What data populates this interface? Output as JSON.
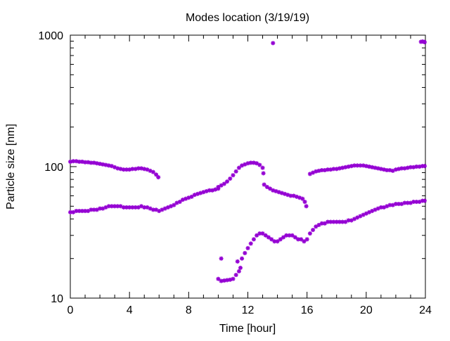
{
  "chart_data": {
    "type": "scatter",
    "title": "Modes location (3/19/19)",
    "xlabel": "Time [hour]",
    "ylabel": "Particle size [nm]",
    "xlim": [
      0,
      24
    ],
    "ylim": [
      10,
      1000
    ],
    "yscale": "log",
    "xticks": [
      0,
      4,
      8,
      12,
      16,
      20,
      24
    ],
    "xtick_labels": [
      "0",
      "4",
      "8",
      "12",
      "16",
      "20",
      "24"
    ],
    "yticks": [
      10,
      100,
      1000
    ],
    "ytick_labels": [
      "10",
      "100",
      "1000"
    ],
    "grid": false,
    "legend": "none",
    "marker_color": "#9400d3",
    "series": [
      {
        "points": [
          [
            0.0,
            109
          ],
          [
            0.2,
            110
          ],
          [
            0.4,
            110
          ],
          [
            0.6,
            109
          ],
          [
            0.8,
            109
          ],
          [
            1.0,
            108
          ],
          [
            1.2,
            108
          ],
          [
            1.4,
            107
          ],
          [
            1.6,
            107
          ],
          [
            1.8,
            106
          ],
          [
            2.0,
            105
          ],
          [
            2.2,
            104
          ],
          [
            2.4,
            103
          ],
          [
            2.6,
            102
          ],
          [
            2.8,
            101
          ],
          [
            3.0,
            99
          ],
          [
            3.2,
            97
          ],
          [
            3.4,
            96
          ],
          [
            3.6,
            95
          ],
          [
            3.8,
            95
          ],
          [
            4.0,
            95
          ],
          [
            4.2,
            96
          ],
          [
            4.4,
            96
          ],
          [
            4.6,
            97
          ],
          [
            4.8,
            97
          ],
          [
            5.0,
            96
          ],
          [
            5.2,
            95
          ],
          [
            5.4,
            93
          ],
          [
            5.6,
            91
          ],
          [
            5.8,
            87
          ],
          [
            5.95,
            83
          ],
          [
            10.0,
            70
          ],
          [
            10.2,
            72
          ],
          [
            10.4,
            74
          ],
          [
            10.6,
            77
          ],
          [
            10.8,
            81
          ],
          [
            11.0,
            86
          ],
          [
            11.2,
            92
          ],
          [
            11.4,
            98
          ],
          [
            11.6,
            102
          ],
          [
            11.8,
            104
          ],
          [
            12.0,
            106
          ],
          [
            12.2,
            107
          ],
          [
            12.4,
            107
          ],
          [
            12.6,
            106
          ],
          [
            12.8,
            103
          ],
          [
            13.0,
            98
          ],
          [
            13.05,
            89
          ],
          [
            16.2,
            88
          ],
          [
            16.4,
            90
          ],
          [
            16.6,
            92
          ],
          [
            16.8,
            93
          ],
          [
            17.0,
            94
          ],
          [
            17.2,
            94
          ],
          [
            17.4,
            95
          ],
          [
            17.6,
            95
          ],
          [
            17.8,
            96
          ],
          [
            18.0,
            96
          ],
          [
            18.2,
            97
          ],
          [
            18.4,
            98
          ],
          [
            18.6,
            99
          ],
          [
            18.8,
            100
          ],
          [
            19.0,
            101
          ],
          [
            19.2,
            102
          ],
          [
            19.4,
            102
          ],
          [
            19.6,
            102
          ],
          [
            19.8,
            102
          ],
          [
            20.0,
            101
          ],
          [
            20.2,
            100
          ],
          [
            20.4,
            99
          ],
          [
            20.6,
            98
          ],
          [
            20.8,
            97
          ],
          [
            21.0,
            96
          ],
          [
            21.2,
            95
          ],
          [
            21.4,
            94
          ],
          [
            21.6,
            94
          ],
          [
            21.8,
            93
          ],
          [
            22.0,
            95
          ],
          [
            22.2,
            96
          ],
          [
            22.4,
            97
          ],
          [
            22.6,
            97
          ],
          [
            22.8,
            98
          ],
          [
            23.0,
            99
          ],
          [
            23.2,
            99
          ],
          [
            23.4,
            100
          ],
          [
            23.6,
            100
          ],
          [
            23.8,
            101
          ],
          [
            23.95,
            101
          ]
        ]
      },
      {
        "points": [
          [
            0.0,
            45
          ],
          [
            0.2,
            45
          ],
          [
            0.4,
            46
          ],
          [
            0.6,
            46
          ],
          [
            0.8,
            46
          ],
          [
            1.0,
            46
          ],
          [
            1.2,
            46
          ],
          [
            1.4,
            47
          ],
          [
            1.6,
            47
          ],
          [
            1.8,
            47
          ],
          [
            2.0,
            48
          ],
          [
            2.2,
            48
          ],
          [
            2.4,
            49
          ],
          [
            2.6,
            50
          ],
          [
            2.8,
            50
          ],
          [
            3.0,
            50
          ],
          [
            3.2,
            50
          ],
          [
            3.4,
            50
          ],
          [
            3.6,
            49
          ],
          [
            3.8,
            49
          ],
          [
            4.0,
            49
          ],
          [
            4.2,
            49
          ],
          [
            4.4,
            49
          ],
          [
            4.6,
            49
          ],
          [
            4.8,
            50
          ],
          [
            5.0,
            49
          ],
          [
            5.2,
            49
          ],
          [
            5.4,
            48
          ],
          [
            5.6,
            47
          ],
          [
            5.8,
            47
          ],
          [
            6.0,
            46
          ],
          [
            6.2,
            47
          ],
          [
            6.4,
            48
          ],
          [
            6.6,
            49
          ],
          [
            6.8,
            50
          ],
          [
            7.0,
            51
          ],
          [
            7.2,
            53
          ],
          [
            7.4,
            54
          ],
          [
            7.6,
            56
          ],
          [
            7.8,
            57
          ],
          [
            8.0,
            58
          ],
          [
            8.2,
            59
          ],
          [
            8.4,
            61
          ],
          [
            8.6,
            62
          ],
          [
            8.8,
            63
          ],
          [
            9.0,
            64
          ],
          [
            9.2,
            65
          ],
          [
            9.4,
            66
          ],
          [
            9.6,
            66
          ],
          [
            9.8,
            67
          ],
          [
            10.0,
            68
          ],
          [
            13.1,
            73
          ],
          [
            13.3,
            70
          ],
          [
            13.5,
            68
          ],
          [
            13.7,
            66
          ],
          [
            13.9,
            65
          ],
          [
            14.1,
            64
          ],
          [
            14.3,
            63
          ],
          [
            14.5,
            62
          ],
          [
            14.7,
            61
          ],
          [
            14.9,
            60
          ],
          [
            15.1,
            60
          ],
          [
            15.3,
            59
          ],
          [
            15.5,
            58
          ],
          [
            15.7,
            57
          ],
          [
            15.85,
            54
          ],
          [
            15.95,
            50
          ],
          [
            10.0,
            14
          ],
          [
            10.2,
            13.5
          ],
          [
            10.4,
            13.6
          ],
          [
            10.6,
            13.7
          ],
          [
            10.8,
            13.8
          ],
          [
            11.0,
            14.0
          ],
          [
            11.2,
            15.0
          ],
          [
            11.4,
            16.0
          ],
          [
            11.5,
            17.0
          ],
          [
            11.6,
            20
          ],
          [
            11.8,
            22
          ],
          [
            12.0,
            24
          ],
          [
            12.2,
            26
          ],
          [
            12.4,
            28
          ],
          [
            12.6,
            30
          ],
          [
            12.8,
            31
          ],
          [
            13.0,
            31
          ],
          [
            13.2,
            30
          ],
          [
            13.4,
            29
          ],
          [
            13.6,
            28
          ],
          [
            13.8,
            27
          ],
          [
            14.0,
            27
          ],
          [
            14.2,
            28
          ],
          [
            14.4,
            29
          ],
          [
            14.6,
            30
          ],
          [
            14.8,
            30
          ],
          [
            15.0,
            30
          ],
          [
            15.2,
            29
          ],
          [
            15.4,
            28
          ],
          [
            15.6,
            28
          ],
          [
            15.8,
            27
          ],
          [
            16.0,
            28
          ],
          [
            16.2,
            31
          ],
          [
            16.4,
            33
          ],
          [
            16.6,
            35
          ],
          [
            16.8,
            36
          ],
          [
            17.0,
            37
          ],
          [
            17.2,
            37
          ],
          [
            17.4,
            38
          ],
          [
            17.6,
            38
          ],
          [
            17.8,
            38
          ],
          [
            18.0,
            38
          ],
          [
            18.2,
            38
          ],
          [
            18.4,
            38
          ],
          [
            18.6,
            38
          ],
          [
            18.8,
            39
          ],
          [
            19.0,
            39
          ],
          [
            19.2,
            40
          ],
          [
            19.4,
            41
          ],
          [
            19.6,
            42
          ],
          [
            19.8,
            43
          ],
          [
            20.0,
            44
          ],
          [
            20.2,
            45
          ],
          [
            20.4,
            46
          ],
          [
            20.6,
            47
          ],
          [
            20.8,
            48
          ],
          [
            21.0,
            49
          ],
          [
            21.2,
            49
          ],
          [
            21.4,
            50
          ],
          [
            21.6,
            51
          ],
          [
            21.8,
            51
          ],
          [
            22.0,
            52
          ],
          [
            22.2,
            52
          ],
          [
            22.4,
            52
          ],
          [
            22.6,
            53
          ],
          [
            22.8,
            53
          ],
          [
            23.0,
            53
          ],
          [
            23.2,
            54
          ],
          [
            23.4,
            54
          ],
          [
            23.6,
            54
          ],
          [
            23.8,
            55
          ],
          [
            23.95,
            55
          ]
        ]
      },
      {
        "points": [
          [
            10.2,
            20
          ],
          [
            11.3,
            19
          ],
          [
            13.7,
            870
          ],
          [
            23.7,
            890
          ],
          [
            23.8,
            895
          ],
          [
            23.9,
            890
          ],
          [
            23.95,
            885
          ]
        ]
      }
    ]
  }
}
